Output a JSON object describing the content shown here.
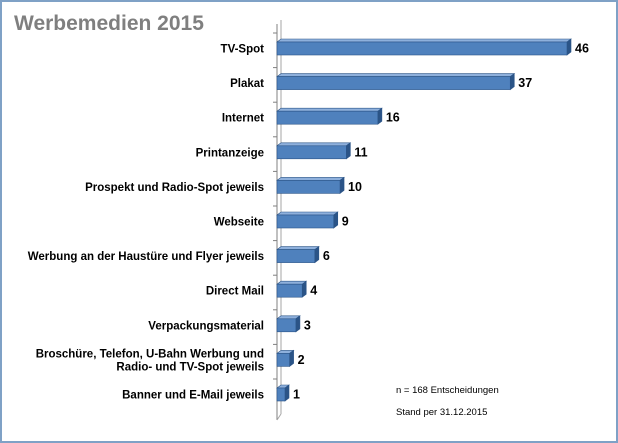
{
  "title": "Werbemedien 2015",
  "notes": {
    "sample": "n = 168 Entscheidungen",
    "date": "Stand per 31.12.2015"
  },
  "colors": {
    "bar_face": "#4f81bd",
    "bar_top": "#8eb0dc",
    "bar_side": "#2b5487",
    "frame": "#7fa1c6",
    "title": "#7f7f7f"
  },
  "chart_data": {
    "type": "bar",
    "orientation": "horizontal",
    "style": "3d",
    "title": "Werbemedien 2015",
    "categories": [
      [
        "TV-Spot"
      ],
      [
        "Plakat"
      ],
      [
        "Internet"
      ],
      [
        "Printanzeige"
      ],
      [
        "Prospekt und Radio-Spot jeweils"
      ],
      [
        "Webseite"
      ],
      [
        "Werbung an der Haustüre und Flyer jeweils"
      ],
      [
        "Direct Mail"
      ],
      [
        "Verpackungsmaterial"
      ],
      [
        "Broschüre, Telefon, U-Bahn Werbung und",
        "Radio- und TV-Spot jeweils"
      ],
      [
        "Banner und E-Mail jeweils"
      ]
    ],
    "values": [
      46,
      37,
      16,
      11,
      10,
      9,
      6,
      4,
      3,
      2,
      1
    ],
    "xlim": [
      0,
      46
    ],
    "grid": false,
    "legend": "none",
    "data_labels": true
  }
}
